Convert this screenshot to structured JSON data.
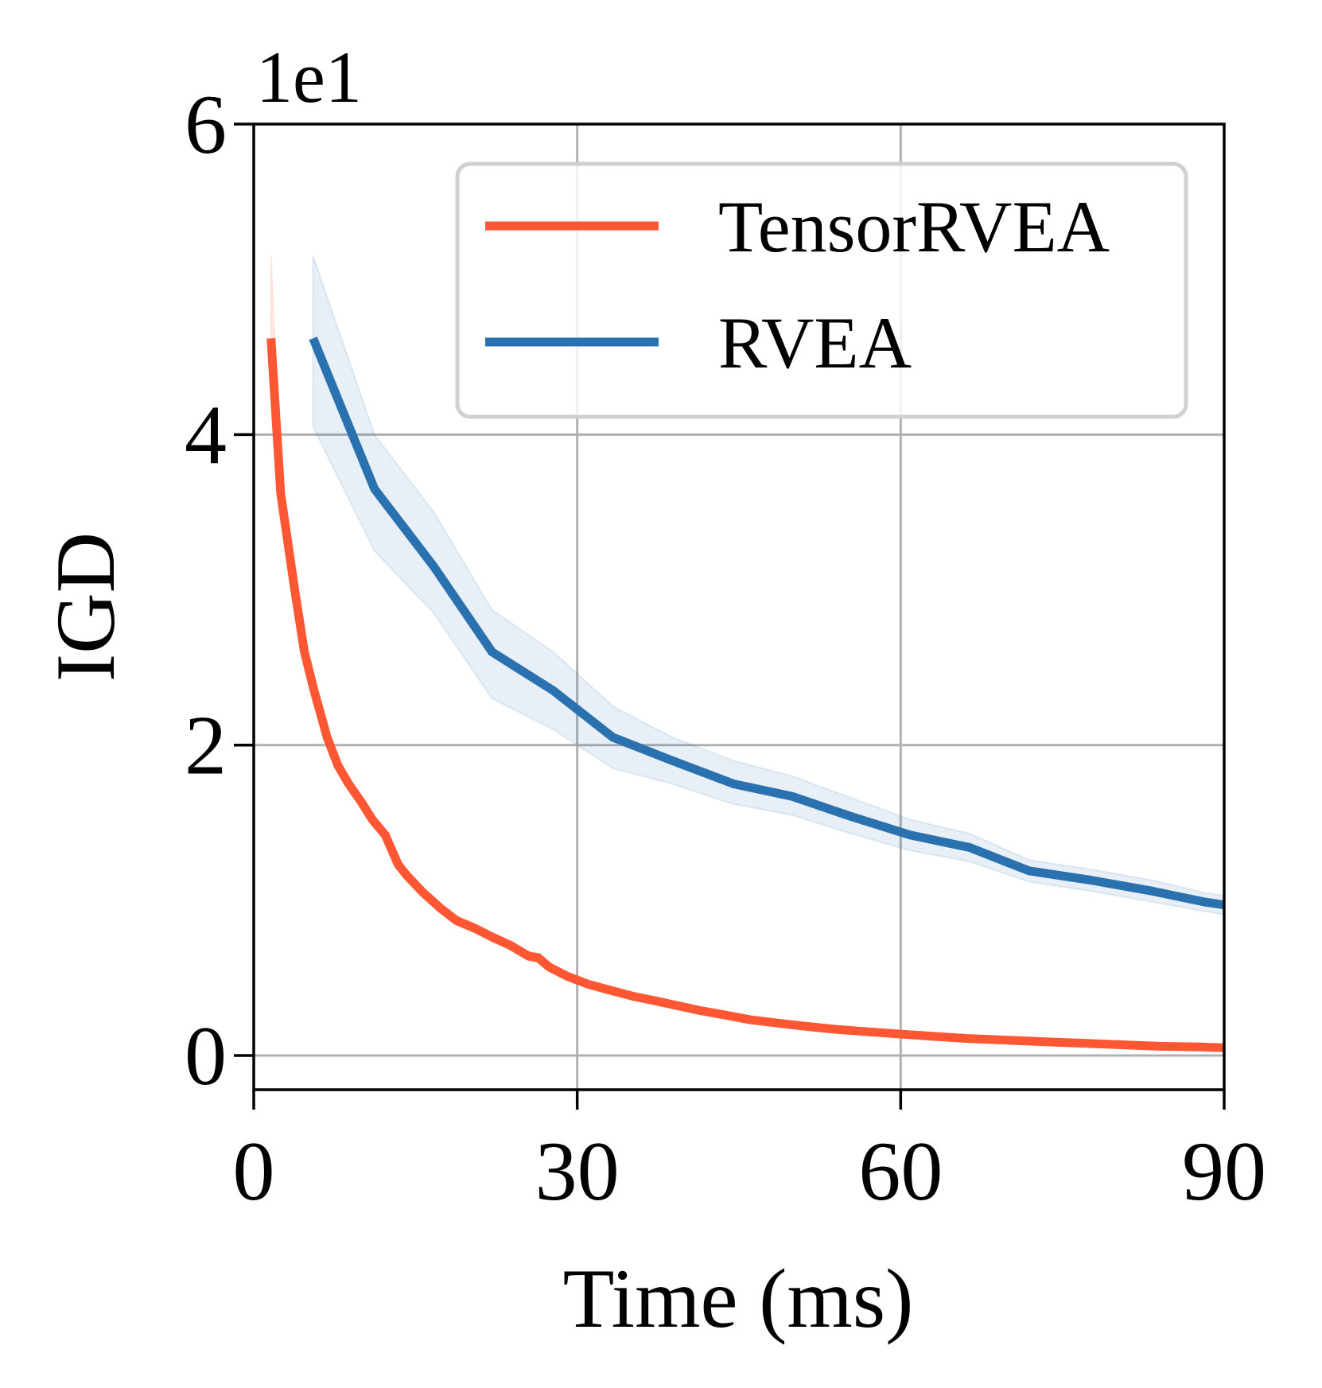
{
  "chart_data": {
    "type": "line",
    "title": "",
    "xlabel": "Time (ms)",
    "ylabel": "IGD",
    "offset_text": "1e1",
    "xlim": [
      0,
      90
    ],
    "ylim": [
      -0.22,
      6
    ],
    "xticks": [
      0,
      30,
      60,
      90
    ],
    "yticks": [
      0,
      2,
      4,
      6
    ],
    "grid": true,
    "legend_position": "top-right",
    "colors": {
      "tensorrvea": "#ff5733",
      "rvea": "#2a71b0",
      "grid": "#b0b0b0",
      "legend_border": "#d0d0d0"
    },
    "series": [
      {
        "name": "TensorRVEA",
        "color": "#ff5733",
        "x": [
          1.6,
          2.5,
          3.8,
          4.7,
          5.6,
          6.8,
          7.8,
          8.8,
          10,
          11,
          12.2,
          13.4,
          14.2,
          15.7,
          17.3,
          18.8,
          20.5,
          22.2,
          23.8,
          25.5,
          26.4,
          27.4,
          29.1,
          31,
          33.1,
          35.3,
          37.4,
          39.4,
          41.4,
          43.8,
          46.1,
          48.5,
          51,
          53.8,
          56.6,
          59.6,
          62.9,
          66.2,
          69.6,
          73,
          76.6,
          80.3,
          84,
          87.8,
          90
        ],
        "y": [
          4.62,
          3.62,
          3.0,
          2.6,
          2.35,
          2.05,
          1.87,
          1.75,
          1.63,
          1.52,
          1.42,
          1.23,
          1.16,
          1.05,
          0.95,
          0.87,
          0.82,
          0.76,
          0.71,
          0.64,
          0.63,
          0.57,
          0.51,
          0.46,
          0.42,
          0.38,
          0.35,
          0.32,
          0.29,
          0.26,
          0.23,
          0.21,
          0.19,
          0.17,
          0.155,
          0.14,
          0.125,
          0.11,
          0.1,
          0.09,
          0.08,
          0.07,
          0.06,
          0.055,
          0.05
        ],
        "band_lower": [
          4.55,
          3.55,
          2.95,
          2.55,
          2.3,
          2.0,
          1.83,
          1.71,
          1.59,
          1.48,
          1.38,
          1.2,
          1.13,
          1.02,
          0.92,
          0.84,
          0.79,
          0.73,
          0.68,
          0.61,
          0.6,
          0.55,
          0.49,
          0.44,
          0.4,
          0.36,
          0.33,
          0.3,
          0.27,
          0.245,
          0.215,
          0.195,
          0.175,
          0.155,
          0.14,
          0.125,
          0.11,
          0.1,
          0.09,
          0.08,
          0.07,
          0.06,
          0.05,
          0.045,
          0.04
        ],
        "band_upper": [
          5.15,
          3.7,
          3.05,
          2.65,
          2.4,
          2.1,
          1.91,
          1.79,
          1.67,
          1.56,
          1.46,
          1.26,
          1.19,
          1.08,
          0.98,
          0.9,
          0.85,
          0.79,
          0.74,
          0.67,
          0.66,
          0.59,
          0.53,
          0.48,
          0.44,
          0.4,
          0.37,
          0.34,
          0.31,
          0.275,
          0.245,
          0.225,
          0.205,
          0.185,
          0.17,
          0.155,
          0.14,
          0.12,
          0.11,
          0.1,
          0.09,
          0.08,
          0.07,
          0.065,
          0.06
        ]
      },
      {
        "name": "RVEA",
        "color": "#2a71b0",
        "x": [
          5.5,
          11.2,
          16.7,
          22.1,
          27.8,
          33.3,
          38.8,
          44.5,
          49.9,
          55.4,
          60.9,
          66.4,
          71.9,
          77.6,
          83.3,
          88.1,
          90
        ],
        "y": [
          4.62,
          3.65,
          3.15,
          2.6,
          2.35,
          2.05,
          1.9,
          1.75,
          1.67,
          1.54,
          1.42,
          1.34,
          1.19,
          1.13,
          1.06,
          0.99,
          0.97
        ],
        "band_lower": [
          4.05,
          3.25,
          2.85,
          2.3,
          2.1,
          1.85,
          1.75,
          1.62,
          1.55,
          1.43,
          1.32,
          1.25,
          1.12,
          1.06,
          0.99,
          0.93,
          0.91
        ],
        "band_upper": [
          5.15,
          4.0,
          3.5,
          2.87,
          2.6,
          2.25,
          2.05,
          1.9,
          1.8,
          1.66,
          1.52,
          1.43,
          1.26,
          1.2,
          1.13,
          1.05,
          1.03
        ]
      }
    ]
  }
}
